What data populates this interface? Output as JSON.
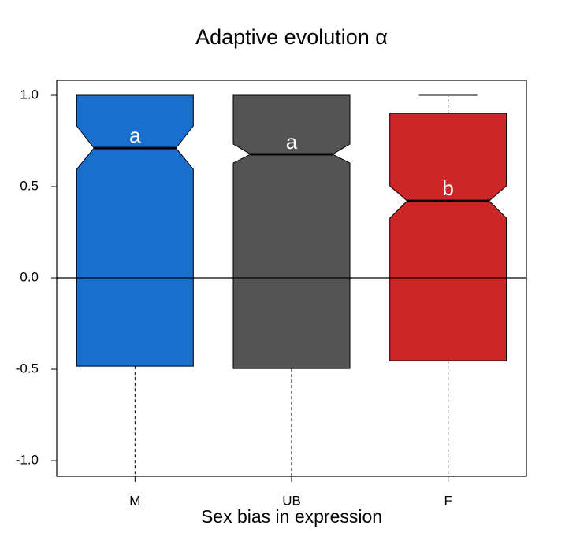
{
  "chart_data": {
    "type": "boxplot",
    "title": "Adaptive evolution α",
    "x_label": "Sex bias in expression",
    "categories": [
      "M",
      "UB",
      "F"
    ],
    "colors": [
      "#1a6fcd",
      "#545454",
      "#cc2626"
    ],
    "boxes": [
      {
        "whisker_low": -1.086,
        "q1": -0.483,
        "notch_low": 0.595,
        "median": 0.711,
        "notch_high": 0.832,
        "q3": 1.0,
        "whisker_high": 1.0
      },
      {
        "whisker_low": -1.086,
        "q1": -0.496,
        "notch_low": 0.629,
        "median": 0.677,
        "notch_high": 0.733,
        "q3": 1.0,
        "whisker_high": 1.0
      },
      {
        "whisker_low": -1.086,
        "q1": -0.453,
        "notch_low": 0.328,
        "median": 0.422,
        "notch_high": 0.504,
        "q3": 0.901,
        "whisker_high": 1.0
      }
    ],
    "annotations": [
      "a",
      "a",
      "b"
    ],
    "reference_line": 0,
    "ylim": [
      -1.086,
      1.082
    ],
    "yticks": [
      {
        "value": -1,
        "label": "-1.0"
      },
      -0.5,
      {
        "value": 0,
        "label": "0.0"
      },
      0.5,
      {
        "value": 1,
        "label": "1.0"
      }
    ]
  }
}
